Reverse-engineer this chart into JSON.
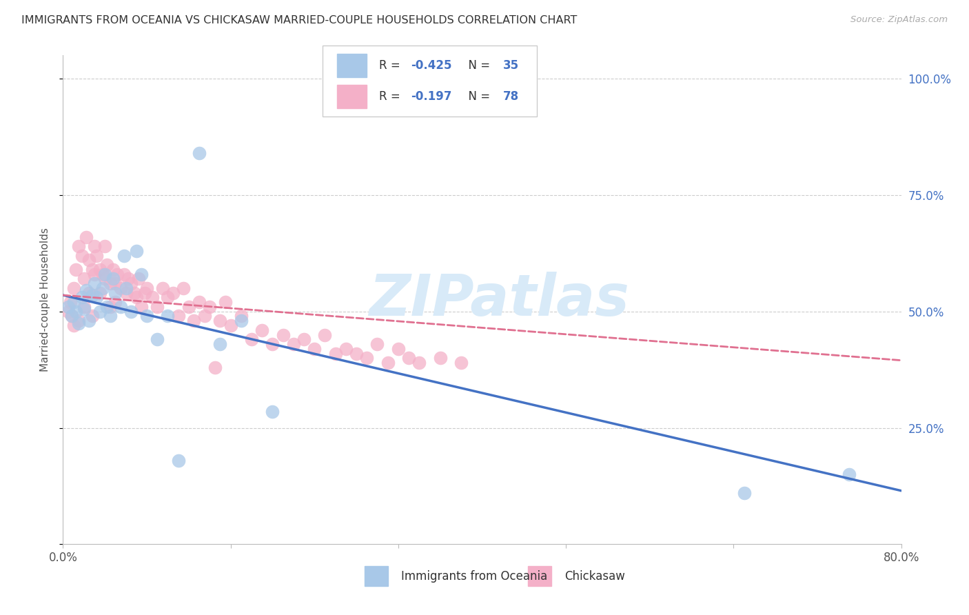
{
  "title": "IMMIGRANTS FROM OCEANIA VS CHICKASAW MARRIED-COUPLE HOUSEHOLDS CORRELATION CHART",
  "source": "Source: ZipAtlas.com",
  "ylabel": "Married-couple Households",
  "xlim": [
    0.0,
    0.8
  ],
  "ylim": [
    0.0,
    1.05
  ],
  "blue_R": -0.425,
  "blue_N": 35,
  "pink_R": -0.197,
  "pink_N": 78,
  "legend_label_blue": "Immigrants from Oceania",
  "legend_label_pink": "Chickasaw",
  "blue_color": "#a8c8e8",
  "pink_color": "#f4b0c8",
  "blue_line_color": "#4472c4",
  "pink_line_color": "#e07090",
  "legend_text_color": "#4472c4",
  "watermark_color": "#d8eaf8",
  "background_color": "#ffffff",
  "grid_color": "#cccccc",
  "title_color": "#333333",
  "right_axis_color": "#4472c4",
  "axis_label_color": "#555555",
  "blue_scatter_x": [
    0.005,
    0.008,
    0.01,
    0.012,
    0.015,
    0.018,
    0.02,
    0.022,
    0.025,
    0.028,
    0.03,
    0.032,
    0.035,
    0.038,
    0.04,
    0.042,
    0.045,
    0.048,
    0.05,
    0.055,
    0.058,
    0.06,
    0.065,
    0.07,
    0.075,
    0.08,
    0.09,
    0.1,
    0.11,
    0.13,
    0.15,
    0.17,
    0.2,
    0.65,
    0.75
  ],
  "blue_scatter_y": [
    0.51,
    0.49,
    0.52,
    0.5,
    0.475,
    0.53,
    0.505,
    0.545,
    0.48,
    0.535,
    0.56,
    0.53,
    0.5,
    0.55,
    0.58,
    0.51,
    0.49,
    0.57,
    0.54,
    0.51,
    0.62,
    0.55,
    0.5,
    0.63,
    0.58,
    0.49,
    0.44,
    0.49,
    0.18,
    0.84,
    0.43,
    0.48,
    0.285,
    0.11,
    0.15
  ],
  "pink_scatter_x": [
    0.005,
    0.007,
    0.008,
    0.01,
    0.01,
    0.012,
    0.015,
    0.015,
    0.018,
    0.02,
    0.02,
    0.022,
    0.025,
    0.025,
    0.028,
    0.028,
    0.03,
    0.03,
    0.032,
    0.035,
    0.035,
    0.038,
    0.04,
    0.04,
    0.042,
    0.045,
    0.045,
    0.048,
    0.05,
    0.05,
    0.052,
    0.055,
    0.058,
    0.06,
    0.062,
    0.065,
    0.068,
    0.07,
    0.072,
    0.075,
    0.078,
    0.08,
    0.085,
    0.09,
    0.095,
    0.1,
    0.105,
    0.11,
    0.115,
    0.12,
    0.125,
    0.13,
    0.135,
    0.14,
    0.145,
    0.15,
    0.155,
    0.16,
    0.17,
    0.18,
    0.19,
    0.2,
    0.21,
    0.22,
    0.23,
    0.24,
    0.25,
    0.26,
    0.27,
    0.28,
    0.29,
    0.3,
    0.31,
    0.32,
    0.33,
    0.34,
    0.36,
    0.38
  ],
  "pink_scatter_y": [
    0.5,
    0.52,
    0.49,
    0.55,
    0.47,
    0.59,
    0.64,
    0.48,
    0.62,
    0.57,
    0.51,
    0.66,
    0.61,
    0.54,
    0.59,
    0.49,
    0.64,
    0.58,
    0.62,
    0.59,
    0.54,
    0.58,
    0.64,
    0.57,
    0.6,
    0.56,
    0.51,
    0.59,
    0.56,
    0.52,
    0.58,
    0.55,
    0.58,
    0.54,
    0.57,
    0.56,
    0.54,
    0.53,
    0.57,
    0.51,
    0.54,
    0.55,
    0.53,
    0.51,
    0.55,
    0.53,
    0.54,
    0.49,
    0.55,
    0.51,
    0.48,
    0.52,
    0.49,
    0.51,
    0.38,
    0.48,
    0.52,
    0.47,
    0.49,
    0.44,
    0.46,
    0.43,
    0.45,
    0.43,
    0.44,
    0.42,
    0.45,
    0.41,
    0.42,
    0.41,
    0.4,
    0.43,
    0.39,
    0.42,
    0.4,
    0.39,
    0.4,
    0.39
  ]
}
